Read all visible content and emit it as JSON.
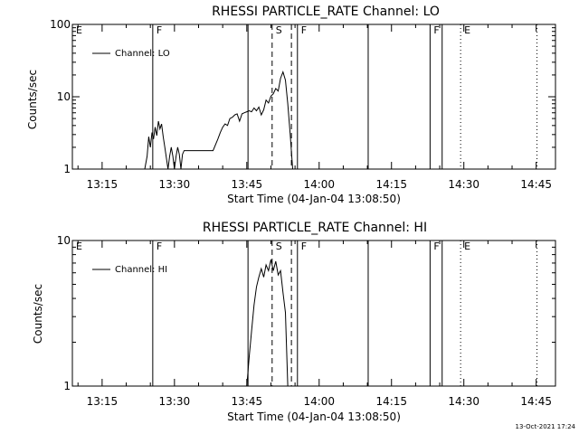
{
  "footer": {
    "timestamp": "13-Oct-2021 17:24"
  },
  "chart_data": [
    {
      "type": "line",
      "title": "RHESSI PARTICLE_RATE Channel: LO",
      "xlabel": "Start Time (04-Jan-04 13:08:50)",
      "ylabel": "Counts/sec",
      "yscale": "log",
      "xlim": [
        "13:08:50",
        "14:49:00"
      ],
      "ylim": [
        1,
        100
      ],
      "ytick_labels": [
        "1",
        "10",
        "100"
      ],
      "xtick_labels": [
        "13:15",
        "13:30",
        "13:45",
        "14:00",
        "14:15",
        "14:30",
        "14:45"
      ],
      "legend": "Channel: LO",
      "flags": [
        {
          "label": "E",
          "time": "13:08:50"
        },
        {
          "label": "F",
          "time": "13:25:30"
        },
        {
          "label": "S",
          "time": "13:50:15"
        },
        {
          "label": "F",
          "time": "13:55:30"
        },
        {
          "label": "F",
          "time": "14:23:00"
        },
        {
          "label": "E",
          "time": "14:29:20"
        }
      ],
      "series": [
        {
          "name": "Channel: LO",
          "x": [
            "13:23:50",
            "13:24:20",
            "13:24:40",
            "13:25:00",
            "13:25:20",
            "13:25:40",
            "13:26:00",
            "13:26:20",
            "13:26:40",
            "13:27:00",
            "13:27:20",
            "13:27:40",
            "13:28:00",
            "13:28:20",
            "13:28:40",
            "13:29:00",
            "13:29:20",
            "13:29:40",
            "13:30:00",
            "13:30:20",
            "13:30:40",
            "13:31:00",
            "13:31:20",
            "13:31:40",
            "13:32:00",
            "13:33:00",
            "13:34:00",
            "13:35:00",
            "13:36:00",
            "13:37:00",
            "13:38:00",
            "13:39:00",
            "13:39:30",
            "13:40:00",
            "13:40:30",
            "13:41:00",
            "13:41:30",
            "13:42:00",
            "13:42:30",
            "13:43:00",
            "13:43:30",
            "13:44:00",
            "13:44:30",
            "13:45:00",
            "13:45:30",
            "13:46:00",
            "13:46:30",
            "13:47:00",
            "13:47:30",
            "13:48:00",
            "13:48:30",
            "13:49:00",
            "13:49:30",
            "13:50:00",
            "13:50:30",
            "13:51:00",
            "13:51:30",
            "13:52:00",
            "13:52:30",
            "13:53:00",
            "13:53:30",
            "13:54:00",
            "13:54:30"
          ],
          "y": [
            1.0,
            1.5,
            2.8,
            2.0,
            3.2,
            2.6,
            3.8,
            2.9,
            4.6,
            3.6,
            4.2,
            2.8,
            2.0,
            1.4,
            1.0,
            1.5,
            2.0,
            1.5,
            1.0,
            1.5,
            2.0,
            1.6,
            1.0,
            1.6,
            1.8,
            1.8,
            1.8,
            1.8,
            1.8,
            1.8,
            1.8,
            2.6,
            3.2,
            3.8,
            4.2,
            4.0,
            5.0,
            5.2,
            5.6,
            5.8,
            4.6,
            5.8,
            6.0,
            6.2,
            6.4,
            6.2,
            7.0,
            6.4,
            7.2,
            5.6,
            6.6,
            9.0,
            8.2,
            10.2,
            11.0,
            13.0,
            12.0,
            18.0,
            22.0,
            17.0,
            8.0,
            3.0,
            1.0
          ]
        }
      ]
    },
    {
      "type": "line",
      "title": "RHESSI PARTICLE_RATE Channel: HI",
      "xlabel": "Start Time (04-Jan-04 13:08:50)",
      "ylabel": "Counts/sec",
      "yscale": "log",
      "xlim": [
        "13:08:50",
        "14:49:00"
      ],
      "ylim": [
        1,
        10
      ],
      "ytick_labels": [
        "1",
        "10"
      ],
      "xtick_labels": [
        "13:15",
        "13:30",
        "13:45",
        "14:00",
        "14:15",
        "14:30",
        "14:45"
      ],
      "legend": "Channel: HI",
      "flags": [
        {
          "label": "E",
          "time": "13:08:50"
        },
        {
          "label": "F",
          "time": "13:25:30"
        },
        {
          "label": "S",
          "time": "13:50:15"
        },
        {
          "label": "F",
          "time": "13:55:30"
        },
        {
          "label": "F",
          "time": "14:23:00"
        },
        {
          "label": "E",
          "time": "14:29:20"
        }
      ],
      "series": [
        {
          "name": "Channel: HI",
          "x": [
            "13:45:00",
            "13:45:30",
            "13:46:00",
            "13:46:30",
            "13:47:00",
            "13:47:30",
            "13:48:00",
            "13:48:30",
            "13:49:00",
            "13:49:30",
            "13:50:00",
            "13:50:30",
            "13:51:00",
            "13:51:30",
            "13:52:00",
            "13:52:30",
            "13:53:00",
            "13:53:30"
          ],
          "y": [
            1.0,
            1.6,
            2.4,
            3.6,
            4.8,
            5.6,
            6.4,
            5.6,
            6.8,
            6.2,
            7.4,
            6.2,
            7.2,
            5.8,
            6.2,
            4.4,
            3.2,
            1.0
          ]
        }
      ]
    }
  ]
}
